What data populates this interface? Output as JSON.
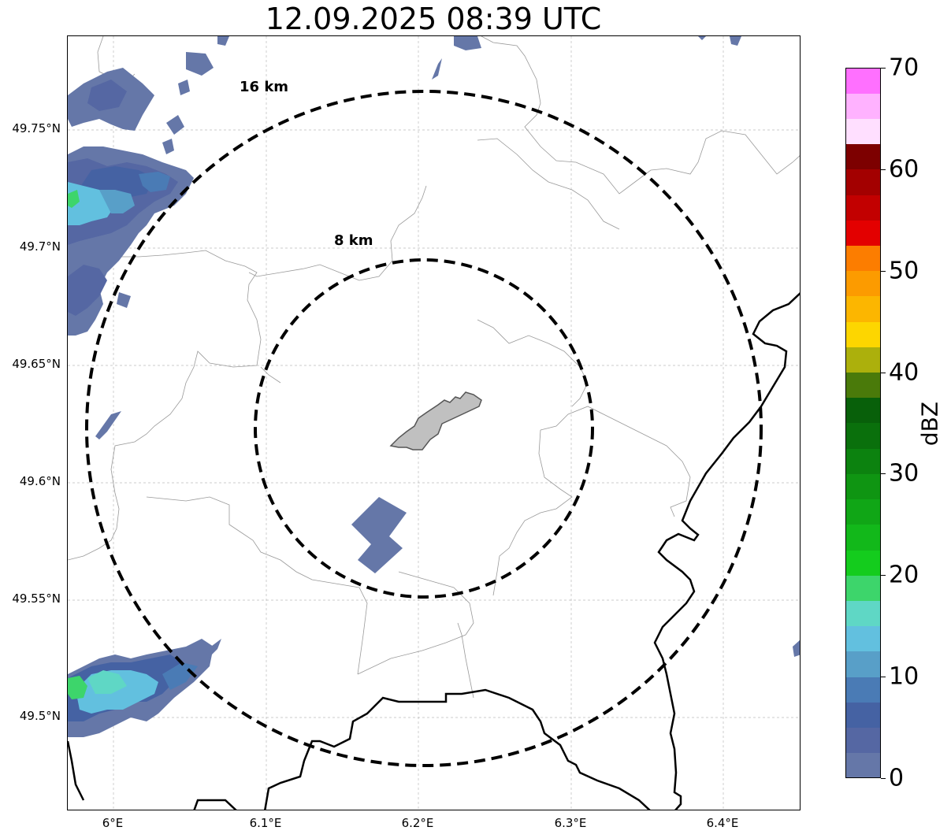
{
  "title": "12.09.2025 08:39 UTC",
  "map": {
    "ring_labels": {
      "outer": "16 km",
      "inner": "8 km"
    },
    "lat_ticks": [
      {
        "label": "49.75°N",
        "value": 49.75
      },
      {
        "label": "49.7°N",
        "value": 49.7
      },
      {
        "label": "49.65°N",
        "value": 49.65
      },
      {
        "label": "49.6°N",
        "value": 49.6
      },
      {
        "label": "49.55°N",
        "value": 49.55
      },
      {
        "label": "49.5°N",
        "value": 49.5
      }
    ],
    "lon_ticks": [
      {
        "label": "6°E",
        "value": 6.0
      },
      {
        "label": "6.1°E",
        "value": 6.1
      },
      {
        "label": "6.2°E",
        "value": 6.2
      },
      {
        "label": "6.3°E",
        "value": 6.3
      },
      {
        "label": "6.4°E",
        "value": 6.4
      }
    ]
  },
  "colorbar": {
    "label": "dBZ",
    "min": 0,
    "max": 70,
    "step": 2.5,
    "tick_labels": [
      "0",
      "10",
      "20",
      "30",
      "40",
      "50",
      "60",
      "70"
    ],
    "colors": [
      "#6577a8",
      "#5567a3",
      "#4562a3",
      "#4a7bb5",
      "#589fc8",
      "#62c0df",
      "#5fd7c5",
      "#3dd56b",
      "#14cc1d",
      "#12b81a",
      "#10a616",
      "#0f9512",
      "#0c820f",
      "#0a700c",
      "#08600a",
      "#4a7a0a",
      "#acb00c",
      "#fdd600",
      "#fcb600",
      "#fc9b00",
      "#fc7d00",
      "#e30000",
      "#c20000",
      "#a30000",
      "#7d0000",
      "#ffdfff",
      "#ffb2ff",
      "#ff70ff",
      "#f236f0"
    ]
  }
}
